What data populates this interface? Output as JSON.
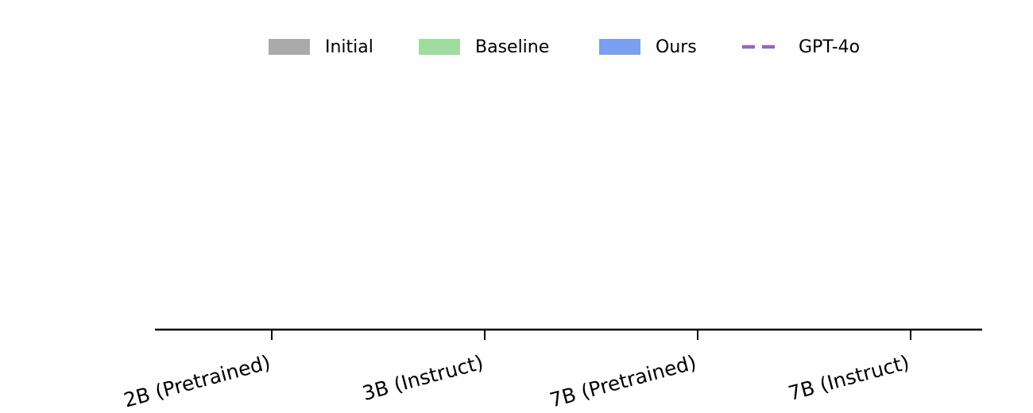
{
  "chart_data": {
    "type": "bar",
    "categories": [
      "2B (Pretrained)",
      "3B (Instruct)",
      "7B (Pretrained)",
      "7B (Instruct)"
    ],
    "series": [
      {
        "name": "Initial",
        "color": "#aaaaaa",
        "values": [
          null,
          null,
          null,
          null
        ]
      },
      {
        "name": "Baseline",
        "color": "#a0dca0",
        "values": [
          null,
          null,
          null,
          null
        ]
      },
      {
        "name": "Ours",
        "color": "#7b9ff2",
        "values": [
          null,
          null,
          null,
          null
        ]
      },
      {
        "name": "GPT-4o",
        "color": "#9467bd",
        "linestyle": "dashed",
        "values": [
          null,
          null,
          null,
          null
        ]
      }
    ],
    "legend": "upper center"
  }
}
